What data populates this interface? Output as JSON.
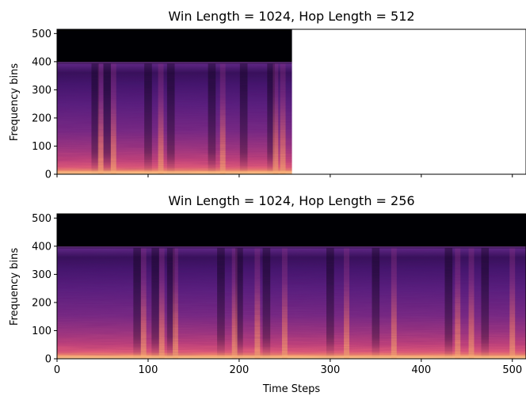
{
  "chart_data": [
    {
      "type": "heatmap",
      "title": "Win Length = 1024, Hop Length = 512",
      "xlabel": "",
      "ylabel": "Frequency bins",
      "xlim": [
        0,
        515
      ],
      "ylim": [
        0,
        515
      ],
      "data_extent_x": [
        0,
        258
      ],
      "yticks": [
        0,
        100,
        200,
        300,
        400,
        500
      ],
      "xticks": [
        0,
        100,
        200,
        300,
        400,
        500
      ],
      "show_xticklabels": false,
      "black_band_above_bin": 397,
      "colormap": "magma",
      "bright_vertical_bands_x": [
        48,
        62,
        114,
        182,
        240,
        248
      ],
      "dark_vertical_bands_x": [
        42,
        55,
        100,
        125,
        170,
        205,
        235
      ]
    },
    {
      "type": "heatmap",
      "title": "Win Length = 1024, Hop Length = 256",
      "xlabel": "Time Steps",
      "ylabel": "Frequency bins",
      "xlim": [
        0,
        515
      ],
      "ylim": [
        0,
        515
      ],
      "data_extent_x": [
        0,
        515
      ],
      "yticks": [
        0,
        100,
        200,
        300,
        400,
        500
      ],
      "xticks": [
        0,
        100,
        200,
        300,
        400,
        500
      ],
      "show_xticklabels": true,
      "black_band_above_bin": 397,
      "colormap": "magma",
      "bright_vertical_bands_x": [
        95,
        115,
        130,
        195,
        220,
        250,
        318,
        370,
        440,
        455,
        500
      ],
      "dark_vertical_bands_x": [
        88,
        108,
        125,
        180,
        200,
        230,
        300,
        350,
        430,
        470
      ]
    }
  ]
}
